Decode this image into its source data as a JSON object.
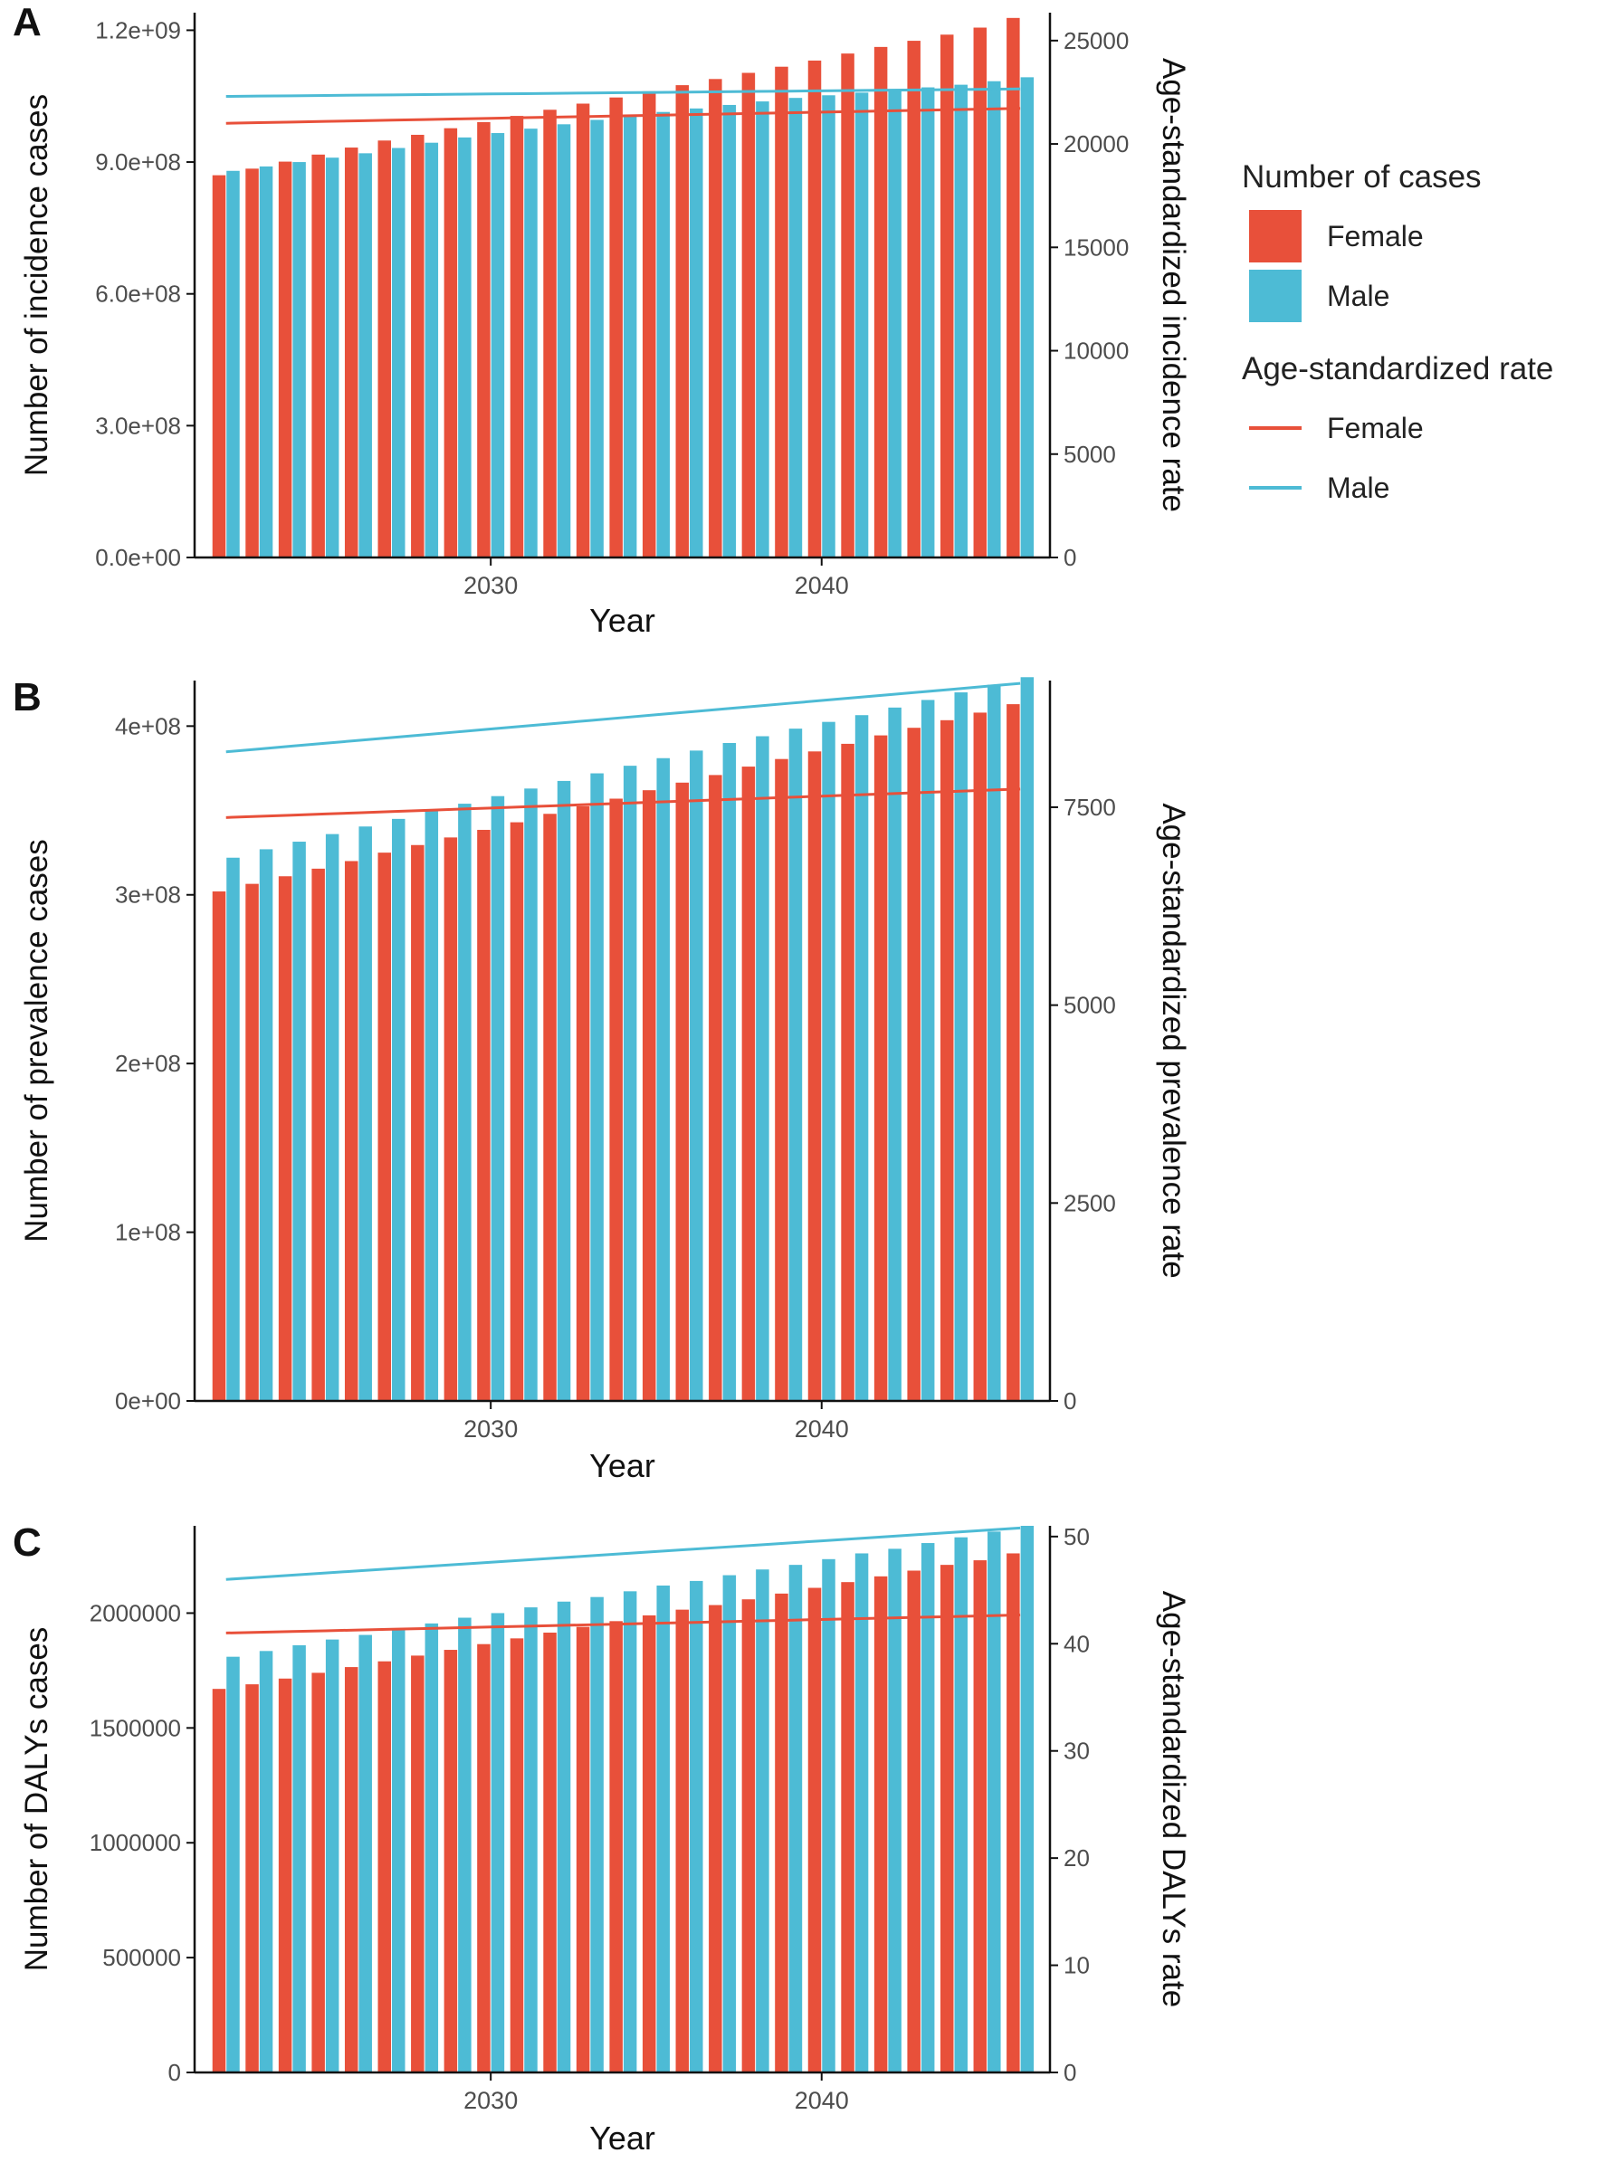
{
  "chart_data": [
    {
      "panel": "A",
      "type": "bar",
      "xlabel": "Year",
      "ylabel": "Number of incidence cases",
      "y2label": "Age-standardized incidence rate",
      "ylim": [
        0,
        1240000000
      ],
      "y2lim": [
        0,
        26350
      ],
      "yticks": [
        0,
        300000000,
        600000000,
        900000000,
        1200000000
      ],
      "ytick_labels": [
        "0.0e+00",
        "3.0e+08",
        "6.0e+08",
        "9.0e+08",
        "1.2e+09"
      ],
      "y2ticks": [
        0,
        5000,
        10000,
        15000,
        20000,
        25000
      ],
      "y2tick_labels": [
        "0",
        "5000",
        "10000",
        "15000",
        "20000",
        "25000"
      ],
      "xticks": [
        2030,
        2040
      ],
      "xtick_labels": [
        "2030",
        "2040"
      ],
      "x": [
        2022,
        2023,
        2024,
        2025,
        2026,
        2027,
        2028,
        2029,
        2030,
        2031,
        2032,
        2033,
        2034,
        2035,
        2036,
        2037,
        2038,
        2039,
        2040,
        2041,
        2042,
        2043,
        2044,
        2045,
        2046
      ],
      "series": [
        {
          "name": "Female",
          "kind": "bar",
          "color": "#E8503A",
          "values": [
            870000000,
            885000000,
            901000000,
            917000000,
            933000000,
            949000000,
            962000000,
            977000000,
            991000000,
            1005000000,
            1019000000,
            1033000000,
            1047000000,
            1061000000,
            1075000000,
            1089000000,
            1103000000,
            1117000000,
            1131000000,
            1147000000,
            1162000000,
            1176000000,
            1190000000,
            1206000000,
            1228000000
          ]
        },
        {
          "name": "Male",
          "kind": "bar",
          "color": "#4DBBD5",
          "values": [
            880000000,
            890000000,
            900000000,
            910000000,
            920000000,
            932000000,
            944000000,
            956000000,
            966000000,
            976000000,
            986000000,
            996000000,
            1006000000,
            1014000000,
            1022000000,
            1030000000,
            1038000000,
            1046000000,
            1052000000,
            1058000000,
            1064000000,
            1070000000,
            1076000000,
            1084000000,
            1093000000
          ]
        },
        {
          "name": "Female",
          "kind": "line",
          "axis": "right",
          "color": "#E8503A",
          "values": [
            21000,
            21030,
            21060,
            21090,
            21120,
            21150,
            21180,
            21210,
            21240,
            21270,
            21300,
            21330,
            21360,
            21390,
            21420,
            21450,
            21480,
            21510,
            21540,
            21570,
            21600,
            21630,
            21660,
            21690,
            21720
          ]
        },
        {
          "name": "Male",
          "kind": "line",
          "axis": "right",
          "color": "#4DBBD5",
          "values": [
            22300,
            22315,
            22330,
            22345,
            22360,
            22375,
            22390,
            22405,
            22420,
            22435,
            22450,
            22465,
            22480,
            22495,
            22510,
            22525,
            22540,
            22555,
            22570,
            22585,
            22600,
            22615,
            22630,
            22645,
            22660
          ]
        }
      ]
    },
    {
      "panel": "B",
      "type": "bar",
      "xlabel": "Year",
      "ylabel": "Number of prevalence cases",
      "y2label": "Age-standardized prevalence rate",
      "ylim": [
        0,
        427000000
      ],
      "y2lim": [
        0,
        9100
      ],
      "yticks": [
        0,
        100000000,
        200000000,
        300000000,
        400000000
      ],
      "ytick_labels": [
        "0e+00",
        "1e+08",
        "2e+08",
        "3e+08",
        "4e+08"
      ],
      "y2ticks": [
        0,
        2500,
        5000,
        7500
      ],
      "y2tick_labels": [
        "0",
        "2500",
        "5000",
        "7500"
      ],
      "xticks": [
        2030,
        2040
      ],
      "xtick_labels": [
        "2030",
        "2040"
      ],
      "x": [
        2022,
        2023,
        2024,
        2025,
        2026,
        2027,
        2028,
        2029,
        2030,
        2031,
        2032,
        2033,
        2034,
        2035,
        2036,
        2037,
        2038,
        2039,
        2040,
        2041,
        2042,
        2043,
        2044,
        2045,
        2046
      ],
      "series": [
        {
          "name": "Female",
          "kind": "bar",
          "color": "#E8503A",
          "values": [
            302000000,
            306500000,
            311000000,
            315500000,
            320000000,
            325000000,
            329500000,
            334000000,
            338500000,
            343000000,
            348000000,
            352500000,
            357000000,
            362000000,
            366500000,
            371000000,
            376000000,
            380500000,
            385000000,
            389500000,
            394500000,
            399000000,
            403500000,
            408000000,
            413000000
          ]
        },
        {
          "name": "Male",
          "kind": "bar",
          "color": "#4DBBD5",
          "values": [
            322000000,
            327000000,
            331500000,
            336000000,
            340500000,
            345000000,
            349500000,
            354000000,
            358500000,
            363000000,
            367500000,
            372000000,
            376500000,
            381000000,
            385500000,
            390000000,
            394000000,
            398500000,
            402500000,
            406500000,
            411000000,
            415500000,
            420000000,
            424500000,
            429000000
          ]
        },
        {
          "name": "Female",
          "kind": "line",
          "axis": "right",
          "color": "#E8503A",
          "values": [
            7370,
            7385,
            7400,
            7415,
            7430,
            7445,
            7460,
            7475,
            7490,
            7505,
            7520,
            7535,
            7550,
            7565,
            7580,
            7595,
            7610,
            7625,
            7640,
            7655,
            7670,
            7685,
            7700,
            7715,
            7730
          ]
        },
        {
          "name": "Male",
          "kind": "line",
          "axis": "right",
          "color": "#4DBBD5",
          "values": [
            8200,
            8236,
            8272,
            8308,
            8344,
            8380,
            8416,
            8452,
            8488,
            8524,
            8560,
            8596,
            8632,
            8668,
            8704,
            8740,
            8776,
            8812,
            8848,
            8884,
            8920,
            8956,
            8992,
            9028,
            9064
          ]
        }
      ]
    },
    {
      "panel": "C",
      "type": "bar",
      "xlabel": "Year",
      "ylabel": "Number of DALYs cases",
      "y2label": "Age-standardized DALYs rate",
      "ylim": [
        0,
        2380000
      ],
      "y2lim": [
        0,
        51
      ],
      "yticks": [
        0,
        500000,
        1000000,
        1500000,
        2000000
      ],
      "ytick_labels": [
        "0",
        "500000",
        "1000000",
        "1500000",
        "2000000"
      ],
      "y2ticks": [
        0,
        10,
        20,
        30,
        40,
        50
      ],
      "y2tick_labels": [
        "0",
        "10",
        "20",
        "30",
        "40",
        "50"
      ],
      "xticks": [
        2030,
        2040
      ],
      "xtick_labels": [
        "2030",
        "2040"
      ],
      "x": [
        2022,
        2023,
        2024,
        2025,
        2026,
        2027,
        2028,
        2029,
        2030,
        2031,
        2032,
        2033,
        2034,
        2035,
        2036,
        2037,
        2038,
        2039,
        2040,
        2041,
        2042,
        2043,
        2044,
        2045,
        2046
      ],
      "series": [
        {
          "name": "Female",
          "kind": "bar",
          "color": "#E8503A",
          "values": [
            1670000,
            1690000,
            1715000,
            1740000,
            1765000,
            1790000,
            1815000,
            1840000,
            1865000,
            1890000,
            1915000,
            1940000,
            1965000,
            1990000,
            2015000,
            2035000,
            2060000,
            2085000,
            2110000,
            2135000,
            2160000,
            2185000,
            2210000,
            2230000,
            2260000
          ]
        },
        {
          "name": "Male",
          "kind": "bar",
          "color": "#4DBBD5",
          "values": [
            1810000,
            1835000,
            1860000,
            1885000,
            1905000,
            1930000,
            1955000,
            1980000,
            2000000,
            2025000,
            2050000,
            2070000,
            2095000,
            2120000,
            2140000,
            2165000,
            2190000,
            2210000,
            2235000,
            2260000,
            2280000,
            2305000,
            2330000,
            2355000,
            2380000
          ]
        },
        {
          "name": "Female",
          "kind": "line",
          "axis": "right",
          "color": "#E8503A",
          "values": [
            41.0,
            41.07,
            41.14,
            41.21,
            41.28,
            41.35,
            41.42,
            41.49,
            41.56,
            41.63,
            41.7,
            41.77,
            41.84,
            41.91,
            41.98,
            42.05,
            42.12,
            42.19,
            42.26,
            42.33,
            42.4,
            42.47,
            42.54,
            42.61,
            42.68
          ]
        },
        {
          "name": "Male",
          "kind": "line",
          "axis": "right",
          "color": "#4DBBD5",
          "values": [
            46.0,
            46.2,
            46.4,
            46.6,
            46.8,
            47.0,
            47.2,
            47.4,
            47.6,
            47.8,
            48.0,
            48.2,
            48.4,
            48.6,
            48.8,
            49.0,
            49.2,
            49.4,
            49.6,
            49.8,
            50.0,
            50.2,
            50.4,
            50.6,
            50.8
          ]
        }
      ]
    }
  ],
  "legend": {
    "cases_title": "Number of cases",
    "rate_title": "Age-standardized rate",
    "items": [
      {
        "label": "Female",
        "color": "#E8503A"
      },
      {
        "label": "Male",
        "color": "#4DBBD5"
      }
    ]
  }
}
